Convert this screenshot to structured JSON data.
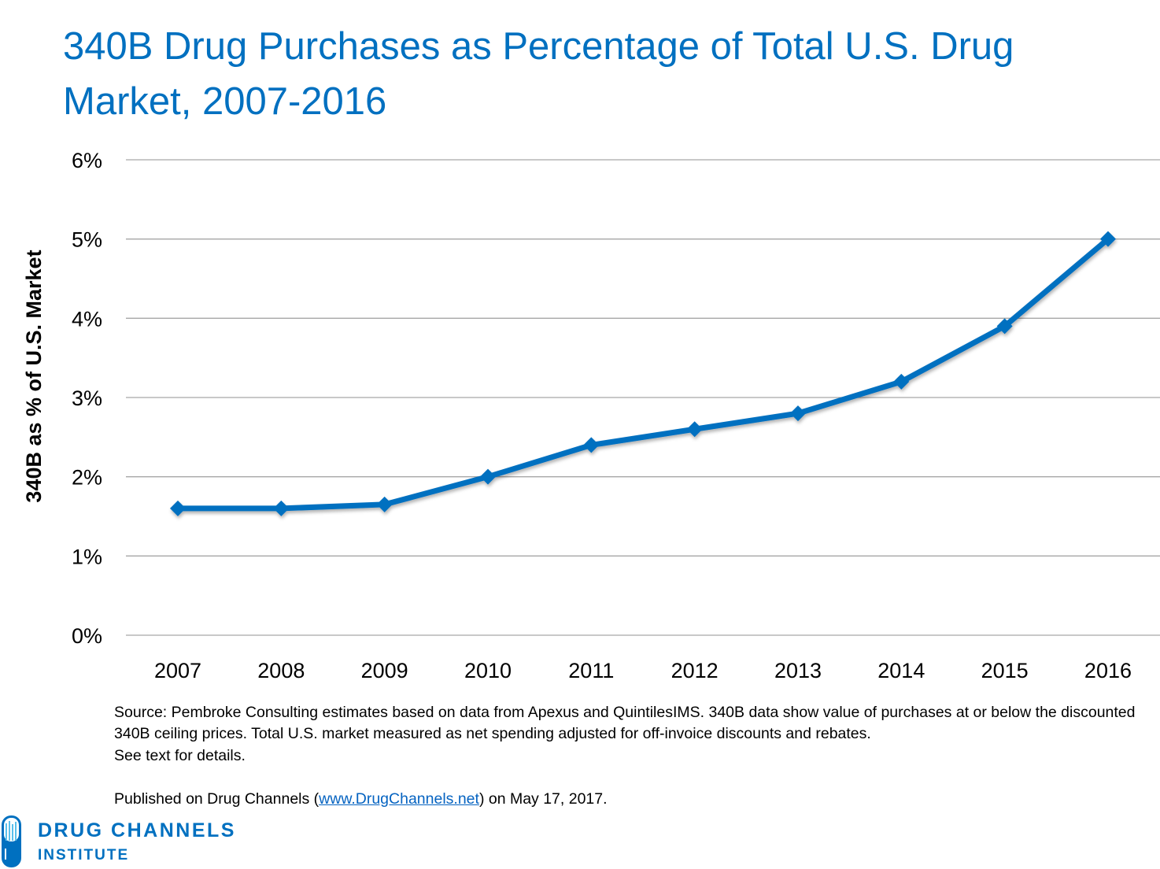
{
  "chart_data": {
    "type": "line",
    "title": "340B Drug Purchases as Percentage of Total U.S. Drug Market, 2007-2016",
    "xlabel": "",
    "ylabel": "340B as % of U.S. Market",
    "categories": [
      "2007",
      "2008",
      "2009",
      "2010",
      "2011",
      "2012",
      "2013",
      "2014",
      "2015",
      "2016"
    ],
    "values": [
      1.6,
      1.6,
      1.65,
      2.0,
      2.4,
      2.6,
      2.8,
      3.2,
      3.9,
      5.0
    ],
    "ylim": [
      0,
      6
    ],
    "yticks": [
      "0%",
      "1%",
      "2%",
      "3%",
      "4%",
      "5%",
      "6%"
    ],
    "grid": true,
    "marker": "diamond",
    "series_color": "#0070C0"
  },
  "notes": {
    "source": "Source: Pembroke Consulting estimates based on data from Apexus and QuintilesIMS. 340B data show value of purchases at or below the discounted 340B ceiling prices. Total U.S. market measured as net spending adjusted for off-invoice discounts and rebates.",
    "see_text": "See text for details.",
    "published_pre": "Published on Drug Channels (",
    "published_link": "www.DrugChannels.net",
    "published_post": ") on May 17, 2017."
  },
  "logo": {
    "line1": "DRUG CHANNELS",
    "line2": "INSTITUTE"
  }
}
